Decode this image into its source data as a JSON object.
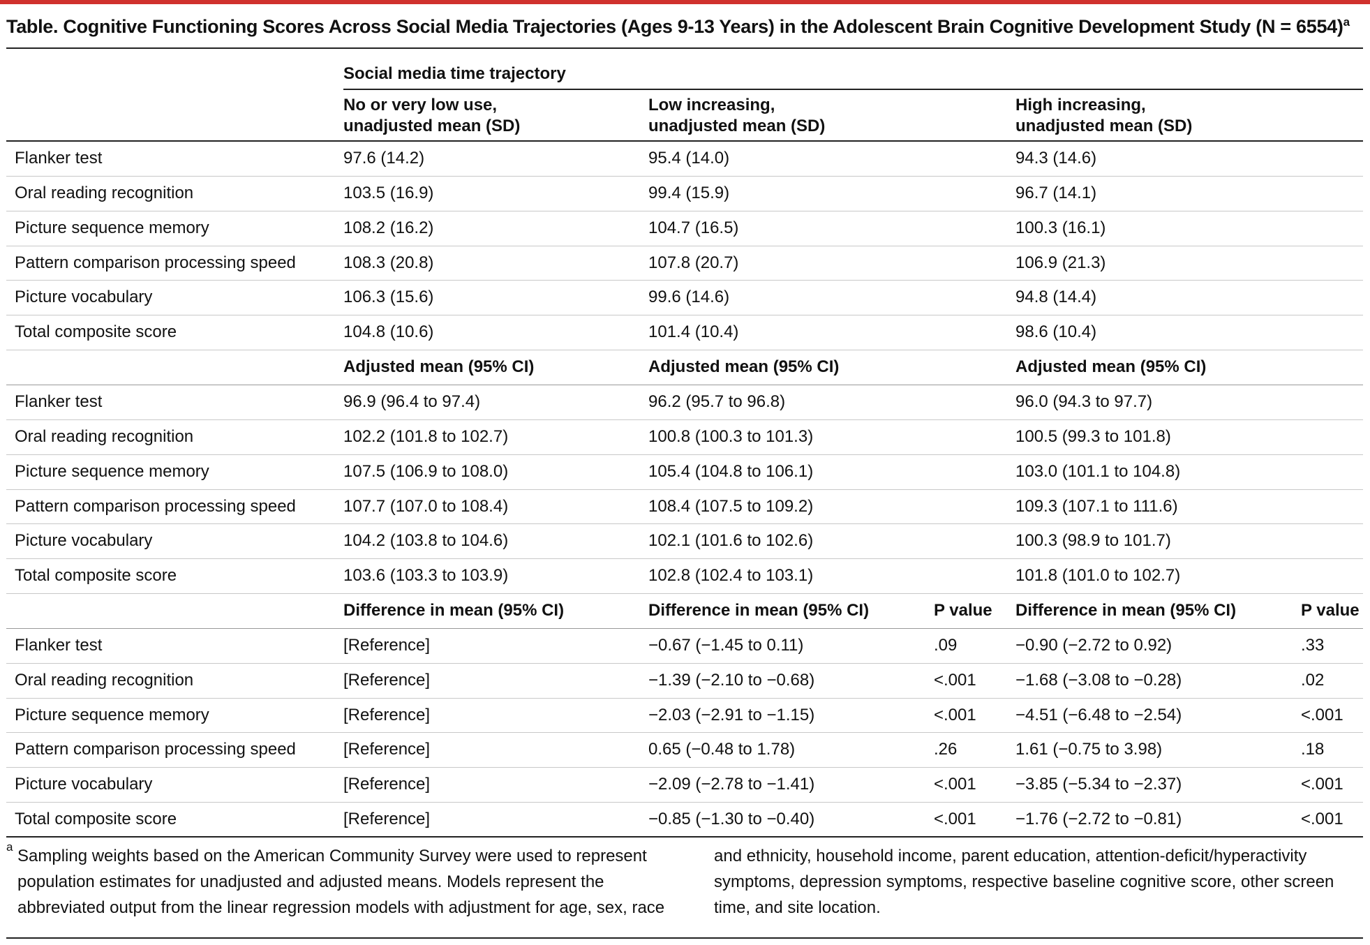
{
  "title": "Table. Cognitive Functioning Scores Across Social Media Trajectories (Ages 9-13 Years) in the Adolescent Brain Cognitive Development Study (N = 6554)",
  "title_note_mark": "a",
  "table": {
    "group_header": "Social media time trajectory",
    "column_headers": [
      [
        "No or very low use,",
        "unadjusted mean (SD)"
      ],
      [
        "Low increasing,",
        "unadjusted mean (SD)"
      ],
      [
        "High increasing,",
        "unadjusted mean (SD)"
      ]
    ],
    "sections": [
      {
        "header": null,
        "rows": [
          [
            "Flanker test",
            "97.6 (14.2)",
            "95.4 (14.0)",
            "94.3 (14.6)"
          ],
          [
            "Oral reading recognition",
            "103.5 (16.9)",
            "99.4 (15.9)",
            "96.7 (14.1)"
          ],
          [
            "Picture sequence memory",
            "108.2 (16.2)",
            "104.7 (16.5)",
            "100.3 (16.1)"
          ],
          [
            "Pattern comparison processing speed",
            "108.3 (20.8)",
            "107.8 (20.7)",
            "106.9 (21.3)"
          ],
          [
            "Picture vocabulary",
            "106.3 (15.6)",
            "99.6 (14.6)",
            "94.8 (14.4)"
          ],
          [
            "Total composite score",
            "104.8 (10.6)",
            "101.4 (10.4)",
            "98.6 (10.4)"
          ]
        ]
      },
      {
        "header": [
          "Adjusted mean (95% CI)",
          "Adjusted mean (95% CI)",
          "Adjusted mean (95% CI)"
        ],
        "rows": [
          [
            "Flanker test",
            "96.9 (96.4 to 97.4)",
            "96.2 (95.7 to 96.8)",
            "96.0 (94.3 to 97.7)"
          ],
          [
            "Oral reading recognition",
            "102.2 (101.8 to 102.7)",
            "100.8 (100.3 to 101.3)",
            "100.5 (99.3 to 101.8)"
          ],
          [
            "Picture sequence memory",
            "107.5 (106.9 to 108.0)",
            "105.4 (104.8 to 106.1)",
            "103.0 (101.1 to 104.8)"
          ],
          [
            "Pattern comparison processing speed",
            "107.7 (107.0 to 108.4)",
            "108.4 (107.5 to 109.2)",
            "109.3 (107.1 to 111.6)"
          ],
          [
            "Picture vocabulary",
            "104.2 (103.8 to 104.6)",
            "102.1 (101.6 to 102.6)",
            "100.3 (98.9 to 101.7)"
          ],
          [
            "Total composite score",
            "103.6 (103.3 to 103.9)",
            "102.8 (102.4 to 103.1)",
            "101.8 (101.0 to 102.7)"
          ]
        ]
      },
      {
        "header": [
          "Difference in mean (95% CI)",
          "Difference in mean (95% CI)",
          "P value",
          "Difference in mean (95% CI)",
          "P value"
        ],
        "rows": [
          [
            "Flanker test",
            "[Reference]",
            "−0.67 (−1.45 to 0.11)",
            ".09",
            "−0.90 (−2.72 to 0.92)",
            ".33"
          ],
          [
            "Oral reading recognition",
            "[Reference]",
            "−1.39 (−2.10 to −0.68)",
            "<.001",
            "−1.68 (−3.08 to −0.28)",
            ".02"
          ],
          [
            "Picture sequence memory",
            "[Reference]",
            "−2.03 (−2.91 to −1.15)",
            "<.001",
            "−4.51 (−6.48 to −2.54)",
            "<.001"
          ],
          [
            "Pattern comparison processing speed",
            "[Reference]",
            "0.65 (−0.48 to 1.78)",
            ".26",
            "1.61 (−0.75 to 3.98)",
            ".18"
          ],
          [
            "Picture vocabulary",
            "[Reference]",
            "−2.09 (−2.78 to −1.41)",
            "<.001",
            "−3.85 (−5.34 to −2.37)",
            "<.001"
          ],
          [
            "Total composite score",
            "[Reference]",
            "−0.85 (−1.30 to −0.40)",
            "<.001",
            "−1.76 (−2.72 to −0.81)",
            "<.001"
          ]
        ]
      }
    ]
  },
  "footnote": {
    "mark": "a",
    "text": "Sampling weights based on the American Community Survey were used to represent population estimates for unadjusted and adjusted means. Models represent the abbreviated output from the linear regression models with adjustment for age, sex, race and ethnicity, household income, parent education, attention-deficit/hyperactivity symptoms, depression symptoms, respective baseline cognitive score, other screen time, and site location."
  }
}
